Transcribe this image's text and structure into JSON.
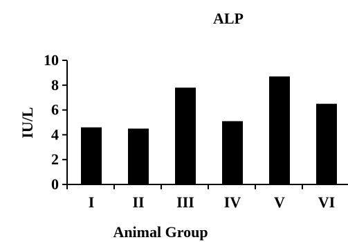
{
  "chart_data": {
    "type": "bar",
    "title": "ALP",
    "xlabel": "Animal Group",
    "ylabel": "IU/L",
    "categories": [
      "I",
      "II",
      "III",
      "IV",
      "V",
      "VI"
    ],
    "values": [
      4.6,
      4.5,
      7.8,
      5.1,
      8.7,
      6.5
    ],
    "ylim": [
      0,
      10
    ],
    "yticks": [
      0,
      2,
      4,
      6,
      8,
      10
    ],
    "grid": false,
    "legend": "none",
    "bar_color": "#000000"
  }
}
